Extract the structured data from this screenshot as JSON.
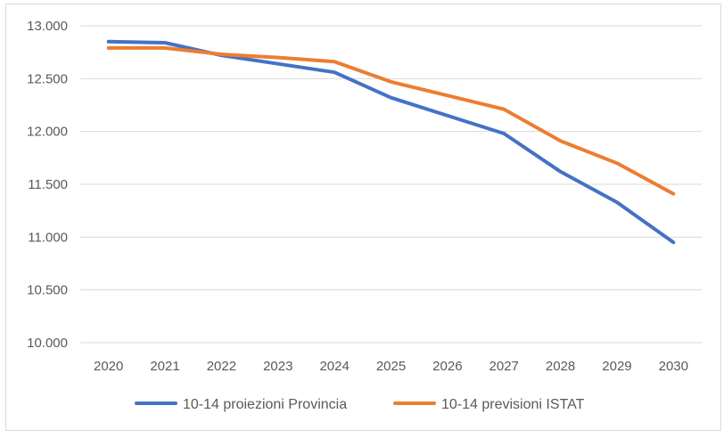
{
  "chart_data": {
    "type": "line",
    "title": "",
    "xlabel": "",
    "ylabel": "",
    "x": [
      "2020",
      "2021",
      "2022",
      "2023",
      "2024",
      "2025",
      "2026",
      "2027",
      "2028",
      "2029",
      "2030"
    ],
    "ylim": [
      10000,
      13000
    ],
    "yticks": [
      10000,
      10500,
      11000,
      11500,
      12000,
      12500,
      13000
    ],
    "ytick_labels": [
      "10.000",
      "10.500",
      "11.000",
      "11.500",
      "12.000",
      "12.500",
      "13.000"
    ],
    "grid": true,
    "legend_position": "bottom",
    "series": [
      {
        "name": "10-14 proiezioni Provincia",
        "color": "#4472C4",
        "values": [
          12850,
          12840,
          12720,
          12640,
          12560,
          12320,
          12150,
          11980,
          11620,
          11330,
          10950
        ]
      },
      {
        "name": "10-14 previsioni ISTAT",
        "color": "#ED7D31",
        "values": [
          12790,
          12790,
          12730,
          12700,
          12660,
          12470,
          12340,
          12210,
          11910,
          11700,
          11410
        ]
      }
    ]
  }
}
